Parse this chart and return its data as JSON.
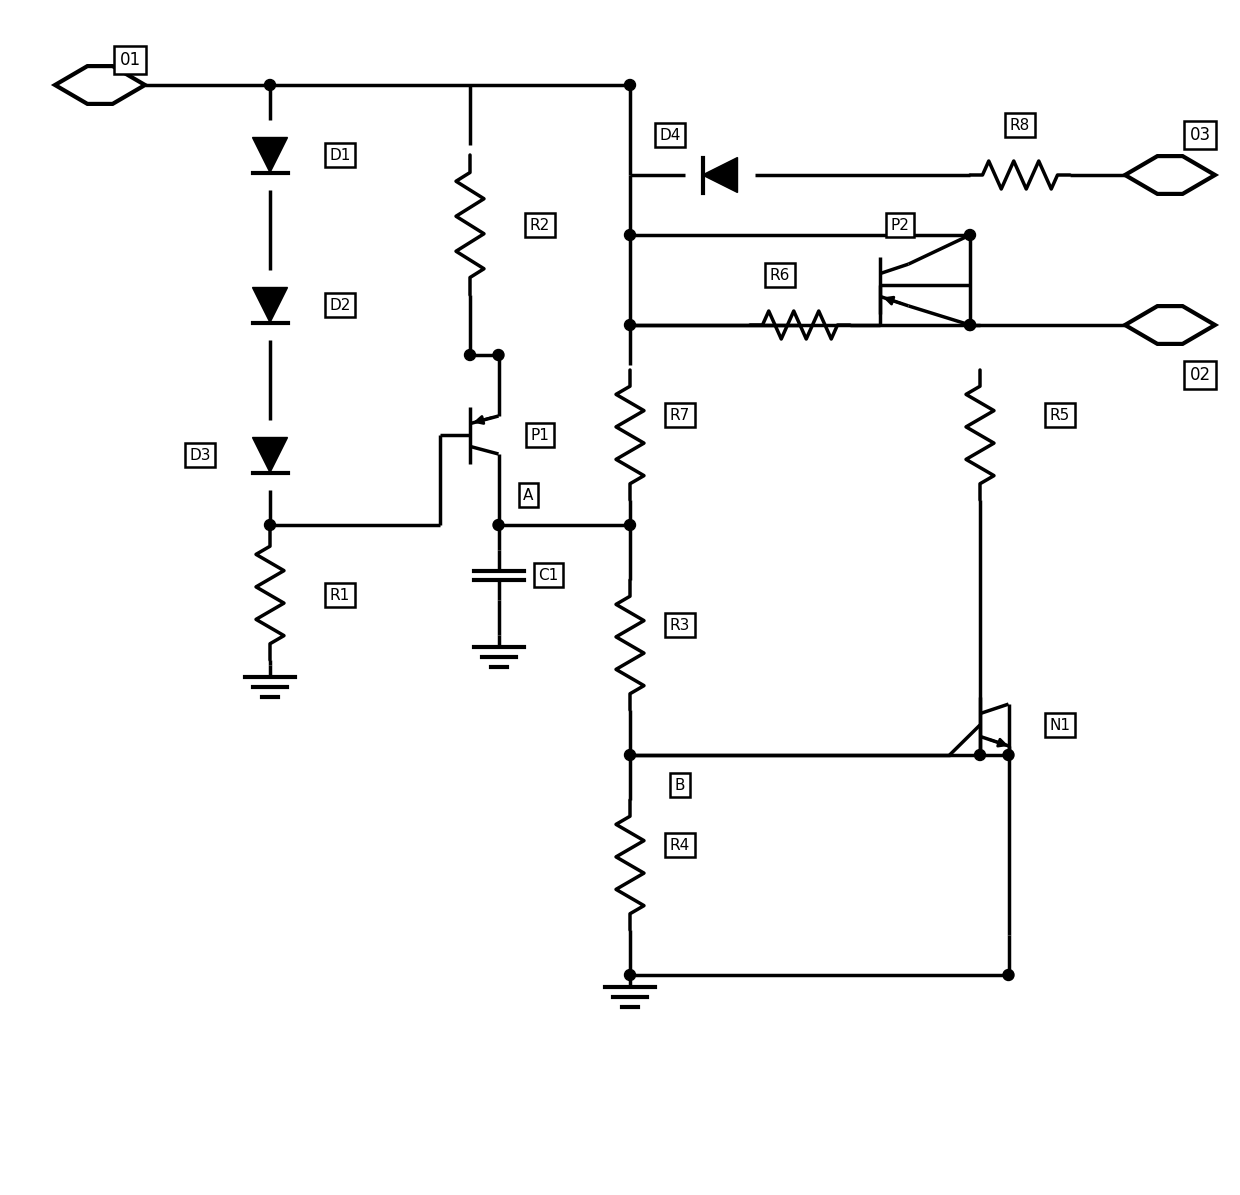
{
  "bg": "#ffffff",
  "lc": "#000000",
  "lw": 2.5,
  "figsize": [
    12.4,
    11.95
  ],
  "dpi": 100,
  "xlim": [
    0,
    124
  ],
  "ylim": [
    0,
    119.5
  ]
}
